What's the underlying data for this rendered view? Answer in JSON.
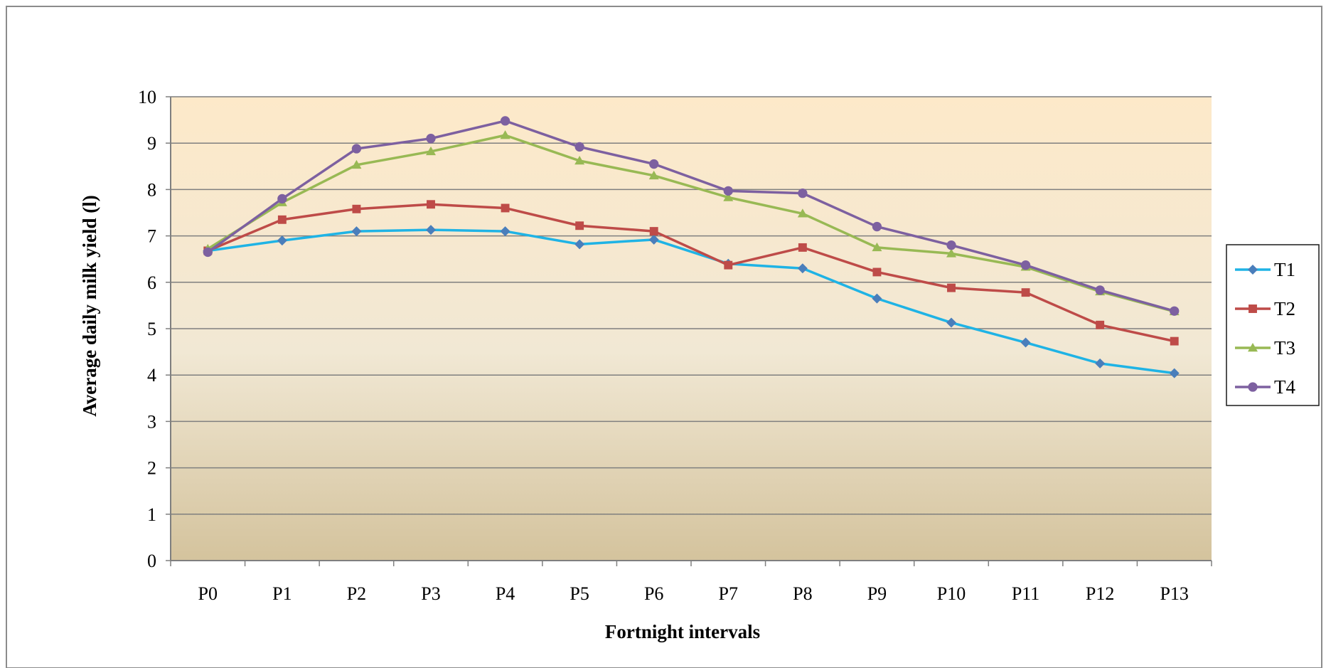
{
  "chart_data": {
    "type": "line",
    "title": "",
    "xlabel": "Fortnight intervals",
    "ylabel": "Average daily milk yield (l)",
    "categories": [
      "P0",
      "P1",
      "P2",
      "P3",
      "P4",
      "P5",
      "P6",
      "P7",
      "P8",
      "P9",
      "P10",
      "P11",
      "P12",
      "P13"
    ],
    "ylim": [
      0,
      10
    ],
    "yticks": [
      "0",
      "1",
      "2",
      "3",
      "4",
      "5",
      "6",
      "7",
      "8",
      "9",
      "10"
    ],
    "grid": true,
    "legend_position": "right",
    "series": [
      {
        "name": "T1",
        "color": "#1fb3e5",
        "marker": "diamond",
        "marker_color": "#4a7ebb",
        "values": [
          6.68,
          6.9,
          7.1,
          7.13,
          7.1,
          6.82,
          6.92,
          6.4,
          6.3,
          5.65,
          5.13,
          4.7,
          4.25,
          4.04
        ]
      },
      {
        "name": "T2",
        "color": "#be4b48",
        "marker": "square",
        "marker_color": "#be4b48",
        "values": [
          6.68,
          7.35,
          7.58,
          7.68,
          7.6,
          7.22,
          7.1,
          6.37,
          6.75,
          6.22,
          5.88,
          5.78,
          5.08,
          4.73
        ]
      },
      {
        "name": "T3",
        "color": "#98b954",
        "marker": "triangle",
        "marker_color": "#98b954",
        "values": [
          6.72,
          7.72,
          8.53,
          8.82,
          9.17,
          8.62,
          8.3,
          7.83,
          7.48,
          6.75,
          6.62,
          6.33,
          5.8,
          5.37
        ]
      },
      {
        "name": "T4",
        "color": "#7d60a0",
        "marker": "circle",
        "marker_color": "#7d60a0",
        "values": [
          6.65,
          7.8,
          8.88,
          9.1,
          9.48,
          8.92,
          8.55,
          7.97,
          7.92,
          7.2,
          6.8,
          6.37,
          5.83,
          5.38
        ]
      }
    ]
  }
}
